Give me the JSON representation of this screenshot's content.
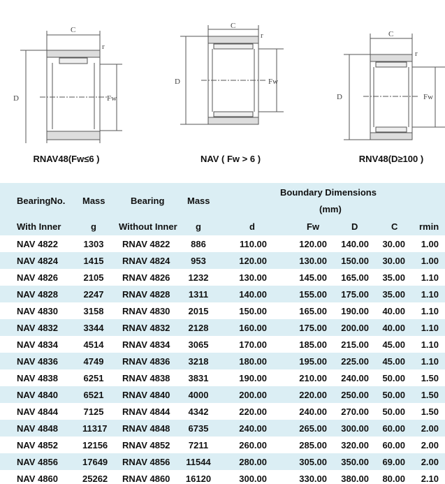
{
  "diagrams": [
    {
      "caption": "RNAV48(Fw≤6 )",
      "labels": {
        "c": "C",
        "d": "D",
        "fw": "Fw",
        "r": "r"
      }
    },
    {
      "caption": "NAV ( Fw > 6 )",
      "labels": {
        "c": "C",
        "d": "D",
        "fw": "Fw",
        "r": "r"
      }
    },
    {
      "caption": "RNV48(D≥100 )",
      "labels": {
        "c": "C",
        "d": "D",
        "fw": "Fw",
        "r": "r"
      }
    }
  ],
  "table": {
    "header": {
      "bearing_no": "BearingNo.",
      "with_inner": "With Inner",
      "mass1": "Mass",
      "g1": "g",
      "bearing": "Bearing",
      "without_inner": "Without Inner",
      "mass2": "Mass",
      "g2": "g",
      "boundary": "Boundary Dimensions",
      "mm": "(mm)",
      "d": "d",
      "fw": "Fw",
      "D": "D",
      "c": "C",
      "rmin": "rmin"
    },
    "rows": [
      [
        "NAV 4822",
        "1303",
        "RNAV 4822",
        "886",
        "110.00",
        "120.00",
        "140.00",
        "30.00",
        "1.00"
      ],
      [
        "NAV 4824",
        "1415",
        "RNAV 4824",
        "953",
        "120.00",
        "130.00",
        "150.00",
        "30.00",
        "1.00"
      ],
      [
        "NAV 4826",
        "2105",
        "RNAV 4826",
        "1232",
        "130.00",
        "145.00",
        "165.00",
        "35.00",
        "1.10"
      ],
      [
        "NAV 4828",
        "2247",
        "RNAV 4828",
        "1311",
        "140.00",
        "155.00",
        "175.00",
        "35.00",
        "1.10"
      ],
      [
        "NAV 4830",
        "3158",
        "RNAV 4830",
        "2015",
        "150.00",
        "165.00",
        "190.00",
        "40.00",
        "1.10"
      ],
      [
        "NAV 4832",
        "3344",
        "RNAV 4832",
        "2128",
        "160.00",
        "175.00",
        "200.00",
        "40.00",
        "1.10"
      ],
      [
        "NAV 4834",
        "4514",
        "RNAV 4834",
        "3065",
        "170.00",
        "185.00",
        "215.00",
        "45.00",
        "1.10"
      ],
      [
        "NAV 4836",
        "4749",
        "RNAV 4836",
        "3218",
        "180.00",
        "195.00",
        "225.00",
        "45.00",
        "1.10"
      ],
      [
        "NAV 4838",
        "6251",
        "RNAV 4838",
        "3831",
        "190.00",
        "210.00",
        "240.00",
        "50.00",
        "1.50"
      ],
      [
        "NAV 4840",
        "6521",
        "RNAV 4840",
        "4000",
        "200.00",
        "220.00",
        "250.00",
        "50.00",
        "1.50"
      ],
      [
        "NAV 4844",
        "7125",
        "RNAV 4844",
        "4342",
        "220.00",
        "240.00",
        "270.00",
        "50.00",
        "1.50"
      ],
      [
        "NAV 4848",
        "11317",
        "RNAV 4848",
        "6735",
        "240.00",
        "265.00",
        "300.00",
        "60.00",
        "2.00"
      ],
      [
        "NAV 4852",
        "12156",
        "RNAV 4852",
        "7211",
        "260.00",
        "285.00",
        "320.00",
        "60.00",
        "2.00"
      ],
      [
        "NAV 4856",
        "17649",
        "RNAV 4856",
        "11544",
        "280.00",
        "305.00",
        "350.00",
        "69.00",
        "2.00"
      ],
      [
        "NAV 4860",
        "25262",
        "RNAV 4860",
        "16120",
        "300.00",
        "330.00",
        "380.00",
        "80.00",
        "2.10"
      ]
    ]
  },
  "colors": {
    "header_bg": "#dbeef4",
    "alt_row_bg": "#dbeef4"
  }
}
